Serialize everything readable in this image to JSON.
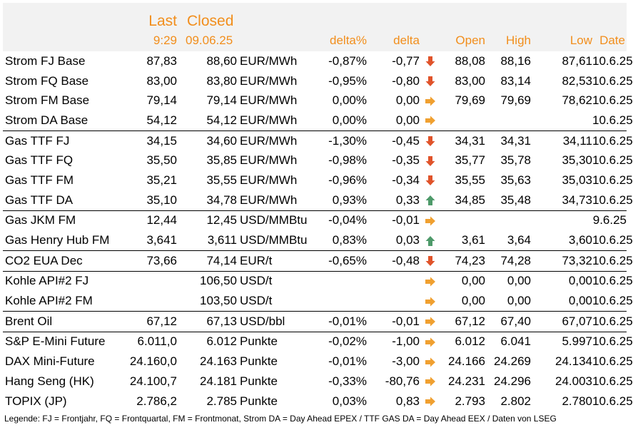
{
  "header": {
    "last_label": "Last",
    "closed_label": "Closed",
    "last_time": "9:29",
    "closed_date": "09.06.25",
    "col_delta_pct": "delta%",
    "col_delta": "delta",
    "col_open": "Open",
    "col_high": "High",
    "col_low": "Low",
    "col_date": "Date"
  },
  "colors": {
    "header_text": "#f28e1c",
    "header_bg": "#f2f2f2",
    "arrow_down": "#e0532a",
    "arrow_up": "#4e9a6a",
    "arrow_flat": "#f0a030"
  },
  "rows": [
    {
      "name": "Strom FJ Base",
      "last": "87,83",
      "closed": "88,60",
      "unit": "EUR/MWh",
      "delta_pct": "-0,87%",
      "delta": "-0,77",
      "trend": "down",
      "open": "88,08",
      "high": "88,16",
      "low": "87,61",
      "date": "10.6.25",
      "sep": false
    },
    {
      "name": "Strom FQ Base",
      "last": "83,00",
      "closed": "83,80",
      "unit": "EUR/MWh",
      "delta_pct": "-0,95%",
      "delta": "-0,80",
      "trend": "down",
      "open": "83,00",
      "high": "83,14",
      "low": "82,53",
      "date": "10.6.25",
      "sep": false
    },
    {
      "name": "Strom FM Base",
      "last": "79,14",
      "closed": "79,14",
      "unit": "EUR/MWh",
      "delta_pct": "0,00%",
      "delta": "0,00",
      "trend": "flat",
      "open": "79,69",
      "high": "79,69",
      "low": "78,62",
      "date": "10.6.25",
      "sep": false
    },
    {
      "name": "Strom DA Base",
      "last": "54,12",
      "closed": "54,12",
      "unit": "EUR/MWh",
      "delta_pct": "0,00%",
      "delta": "0,00",
      "trend": "flat",
      "open": "",
      "high": "",
      "low": "",
      "date": "10.6.25",
      "sep": false
    },
    {
      "name": "Gas TTF FJ",
      "last": "34,15",
      "closed": "34,60",
      "unit": "EUR/MWh",
      "delta_pct": "-1,30%",
      "delta": "-0,45",
      "trend": "down",
      "open": "34,31",
      "high": "34,31",
      "low": "34,11",
      "date": "10.6.25",
      "sep": true
    },
    {
      "name": "Gas TTF FQ",
      "last": "35,50",
      "closed": "35,85",
      "unit": "EUR/MWh",
      "delta_pct": "-0,98%",
      "delta": "-0,35",
      "trend": "down",
      "open": "35,77",
      "high": "35,78",
      "low": "35,30",
      "date": "10.6.25",
      "sep": false
    },
    {
      "name": "Gas TTF FM",
      "last": "35,21",
      "closed": "35,55",
      "unit": "EUR/MWh",
      "delta_pct": "-0,96%",
      "delta": "-0,34",
      "trend": "down",
      "open": "35,55",
      "high": "35,63",
      "low": "35,03",
      "date": "10.6.25",
      "sep": false
    },
    {
      "name": "Gas TTF DA",
      "last": "35,10",
      "closed": "34,78",
      "unit": "EUR/MWh",
      "delta_pct": "0,93%",
      "delta": "0,33",
      "trend": "up",
      "open": "34,85",
      "high": "35,48",
      "low": "34,73",
      "date": "10.6.25",
      "sep": false
    },
    {
      "name": "Gas JKM FM",
      "last": "12,44",
      "closed": "12,45",
      "unit": "USD/MMBtu",
      "delta_pct": "-0,04%",
      "delta": "-0,01",
      "trend": "flat",
      "open": "",
      "high": "",
      "low": "",
      "date": "9.6.25",
      "sep": true
    },
    {
      "name": "Gas Henry Hub FM",
      "last": "3,641",
      "closed": "3,611",
      "unit": "USD/MMBtu",
      "delta_pct": "0,83%",
      "delta": "0,03",
      "trend": "up",
      "open": "3,61",
      "high": "3,64",
      "low": "3,60",
      "date": "10.6.25",
      "sep": false
    },
    {
      "name": "CO2 EUA Dec",
      "last": "73,66",
      "closed": "74,14",
      "unit": "EUR/t",
      "delta_pct": "-0,65%",
      "delta": "-0,48",
      "trend": "down",
      "open": "74,23",
      "high": "74,28",
      "low": "73,32",
      "date": "10.6.25",
      "sep": true
    },
    {
      "name": "Kohle API#2 FJ",
      "last": "",
      "closed": "106,50",
      "unit": "USD/t",
      "delta_pct": "",
      "delta": "",
      "trend": "flat",
      "open": "0,00",
      "high": "0,00",
      "low": "0,00",
      "date": "10.6.25",
      "sep": true
    },
    {
      "name": "Kohle API#2 FM",
      "last": "",
      "closed": "103,50",
      "unit": "USD/t",
      "delta_pct": "",
      "delta": "",
      "trend": "flat",
      "open": "0,00",
      "high": "0,00",
      "low": "0,00",
      "date": "10.6.25",
      "sep": false
    },
    {
      "name": "Brent Oil",
      "last": "67,12",
      "closed": "67,13",
      "unit": "USD/bbl",
      "delta_pct": "-0,01%",
      "delta": "-0,01",
      "trend": "flat",
      "open": "67,12",
      "high": "67,40",
      "low": "67,07",
      "date": "10.6.25",
      "sep": true
    },
    {
      "name": "S&P E-Mini Future",
      "last": "6.011,0",
      "closed": "6.012",
      "unit": "Punkte",
      "delta_pct": "-0,02%",
      "delta": "-1,00",
      "trend": "flat",
      "open": "6.012",
      "high": "6.041",
      "low": "5.997",
      "date": "10.6.25",
      "sep": true
    },
    {
      "name": "DAX Mini-Future",
      "last": "24.160,0",
      "closed": "24.163",
      "unit": "Punkte",
      "delta_pct": "-0,01%",
      "delta": "-3,00",
      "trend": "flat",
      "open": "24.166",
      "high": "24.269",
      "low": "24.134",
      "date": "10.6.25",
      "sep": false
    },
    {
      "name": "Hang Seng (HK)",
      "last": "24.100,7",
      "closed": "24.181",
      "unit": "Punkte",
      "delta_pct": "-0,33%",
      "delta": "-80,76",
      "trend": "flat",
      "open": "24.231",
      "high": "24.296",
      "low": "24.003",
      "date": "10.6.25",
      "sep": false
    },
    {
      "name": "TOPIX (JP)",
      "last": "2.786,2",
      "closed": "2.785",
      "unit": "Punkte",
      "delta_pct": "0,03%",
      "delta": "0,83",
      "trend": "flat",
      "open": "2.793",
      "high": "2.802",
      "low": "2.780",
      "date": "10.6.25",
      "sep": false
    }
  ],
  "legend": "Legende: FJ = Frontjahr, FQ = Frontquartal, FM = Frontmonat, Strom DA = Day Ahead EPEX / TTF GAS DA = Day Ahead EEX / Daten von LSEG"
}
